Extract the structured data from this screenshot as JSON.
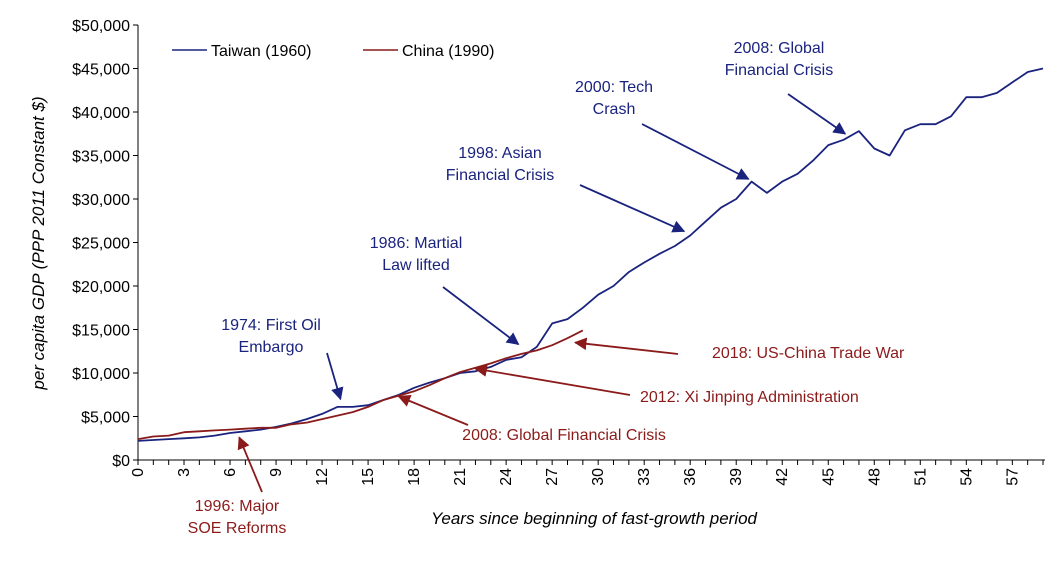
{
  "chart_data": {
    "type": "line",
    "title": "",
    "xlabel": "Years since beginning of fast-growth period",
    "ylabel": "per capita GDP (PPP 2011 Constant $)",
    "xlim": [
      0,
      59
    ],
    "ylim": [
      0,
      50000
    ],
    "x_ticks": [
      0,
      3,
      6,
      9,
      12,
      15,
      18,
      21,
      24,
      27,
      30,
      33,
      36,
      39,
      42,
      45,
      48,
      51,
      54,
      57
    ],
    "x_tick_labels": [
      "0",
      "3",
      "6",
      "9",
      "12",
      "15",
      "18",
      "21",
      "24",
      "27",
      "30",
      "33",
      "36",
      "39",
      "42",
      "45",
      "48",
      "51",
      "54",
      "57"
    ],
    "y_ticks": [
      0,
      5000,
      10000,
      15000,
      20000,
      25000,
      30000,
      35000,
      40000,
      45000,
      50000
    ],
    "y_tick_labels": [
      "$0",
      "$5,000",
      "$10,000",
      "$15,000",
      "$20,000",
      "$25,000",
      "$30,000",
      "$35,000",
      "$40,000",
      "$45,000",
      "$50,000"
    ],
    "grid": false,
    "legend_position": "top-left",
    "series": [
      {
        "name": "Taiwan (1960)",
        "color": "#1a237e",
        "x": [
          0,
          1,
          2,
          3,
          4,
          5,
          6,
          7,
          8,
          9,
          10,
          11,
          12,
          13,
          14,
          15,
          16,
          17,
          18,
          19,
          20,
          21,
          22,
          23,
          24,
          25,
          26,
          27,
          28,
          29,
          30,
          31,
          32,
          33,
          34,
          35,
          36,
          37,
          38,
          39,
          40,
          41,
          42,
          43,
          44,
          45,
          46,
          47,
          48,
          49,
          50,
          51,
          52,
          53,
          54,
          55,
          56,
          57,
          58,
          59
        ],
        "y": [
          2200,
          2300,
          2400,
          2500,
          2600,
          2800,
          3100,
          3300,
          3500,
          3800,
          4200,
          4700,
          5300,
          6100,
          6100,
          6300,
          6900,
          7500,
          8300,
          8900,
          9400,
          10000,
          10200,
          10700,
          11500,
          11800,
          13000,
          15700,
          16200,
          17500,
          19000,
          20000,
          21600,
          22700,
          23700,
          24600,
          25800,
          27400,
          29000,
          30000,
          32000,
          30700,
          32000,
          32900,
          34400,
          36200,
          36800,
          37800,
          35800,
          35000,
          37900,
          38600,
          38600,
          39500,
          41700,
          41700,
          42200,
          43400,
          44600,
          45000
        ]
      },
      {
        "name": "China (1990)",
        "color": "#8b1a1a",
        "x": [
          0,
          1,
          2,
          3,
          4,
          5,
          6,
          7,
          8,
          9,
          10,
          11,
          12,
          13,
          14,
          15,
          16,
          17,
          18,
          19,
          20,
          21,
          22,
          23,
          24,
          25,
          26,
          27,
          28,
          29
        ],
        "y": [
          2400,
          2700,
          2800,
          3200,
          3300,
          3400,
          3500,
          3600,
          3700,
          3700,
          4100,
          4300,
          4700,
          5100,
          5500,
          6100,
          6900,
          7400,
          7900,
          8600,
          9400,
          10100,
          10600,
          11100,
          11700,
          12200,
          12600,
          13200,
          14000,
          14900
        ]
      }
    ],
    "annotations": [
      {
        "id": "tw-1974",
        "series": "Taiwan (1960)",
        "lines": [
          "1974: First Oil",
          "Embargo"
        ],
        "color": "#1a237e",
        "target": [
          13.2,
          7000
        ]
      },
      {
        "id": "tw-1986",
        "series": "Taiwan (1960)",
        "lines": [
          "1986: Martial",
          "Law lifted"
        ],
        "color": "#1a237e",
        "target": [
          24.8,
          13300
        ]
      },
      {
        "id": "tw-1998",
        "series": "Taiwan (1960)",
        "lines": [
          "1998: Asian",
          "Financial Crisis"
        ],
        "color": "#1a237e",
        "target": [
          35.6,
          26300
        ]
      },
      {
        "id": "tw-2000",
        "series": "Taiwan (1960)",
        "lines": [
          "2000: Tech",
          "Crash"
        ],
        "color": "#1a237e",
        "target": [
          39.8,
          32300
        ]
      },
      {
        "id": "tw-2008",
        "series": "Taiwan (1960)",
        "lines": [
          "2008: Global",
          "Financial Crisis"
        ],
        "color": "#1a237e",
        "target": [
          46.1,
          37500
        ]
      },
      {
        "id": "cn-1996",
        "series": "China (1990)",
        "lines": [
          "1996: Major",
          "SOE Reforms"
        ],
        "color": "#8b1a1a",
        "target": [
          6.6,
          2600
        ]
      },
      {
        "id": "cn-2008",
        "series": "China (1990)",
        "lines": [
          "2008: Global Financial Crisis"
        ],
        "color": "#8b1a1a",
        "target": [
          17.0,
          7300
        ]
      },
      {
        "id": "cn-2012",
        "series": "China (1990)",
        "lines": [
          "2012: Xi Jinping Administration"
        ],
        "color": "#8b1a1a",
        "target": [
          22.0,
          10500
        ]
      },
      {
        "id": "cn-2018",
        "series": "China (1990)",
        "lines": [
          "2018: US-China Trade War"
        ],
        "color": "#8b1a1a",
        "target": [
          28.5,
          13500
        ]
      }
    ]
  }
}
